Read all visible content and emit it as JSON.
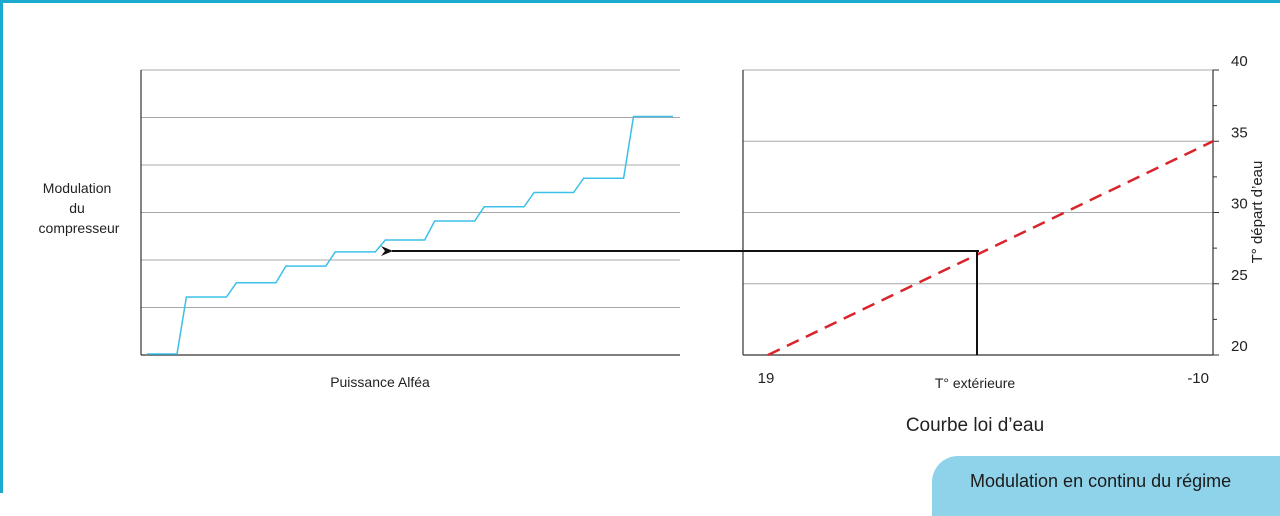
{
  "chart_data": [
    {
      "type": "line",
      "title": "",
      "xlabel": "Puissance Alféa",
      "ylabel": "Modulation du compresseur",
      "ylabel_lines": [
        "Modulation",
        "du",
        "compresseur"
      ],
      "grid": true,
      "series": [
        {
          "style": "step",
          "color": "#3cc0e8",
          "x": [
            0,
            0.057,
            0.075,
            0.151,
            0.17,
            0.245,
            0.264,
            0.34,
            0.358,
            0.434,
            0.453,
            0.528,
            0.547,
            0.623,
            0.641,
            0.717,
            0.736,
            0.811,
            0.83,
            0.906,
            0.925,
            1.0
          ],
          "y": [
            0,
            0,
            1.2,
            1.2,
            1.5,
            1.5,
            1.85,
            1.85,
            2.15,
            2.15,
            2.4,
            2.4,
            2.8,
            2.8,
            3.1,
            3.1,
            3.4,
            3.4,
            3.7,
            3.7,
            5.0,
            5.0
          ]
        }
      ]
    },
    {
      "type": "line",
      "title": "Courbe loi d’eau",
      "xlabel": "T° extérieure",
      "ylabel": "T° départ d’eau",
      "x_ticks": [
        "19",
        "-10"
      ],
      "xlim": [
        19,
        -10
      ],
      "y_ticks": [
        "20",
        "25",
        "30",
        "35",
        "40"
      ],
      "ylim": [
        20,
        40
      ],
      "grid": true,
      "series": [
        {
          "style": "dashed",
          "color": "#d9242b",
          "x": [
            19,
            -10
          ],
          "y": [
            20,
            35
          ]
        }
      ],
      "annotation": {
        "x_value": 2.5,
        "y_value": 27.1
      }
    }
  ],
  "footer_note": "Modulation en continu du régime"
}
